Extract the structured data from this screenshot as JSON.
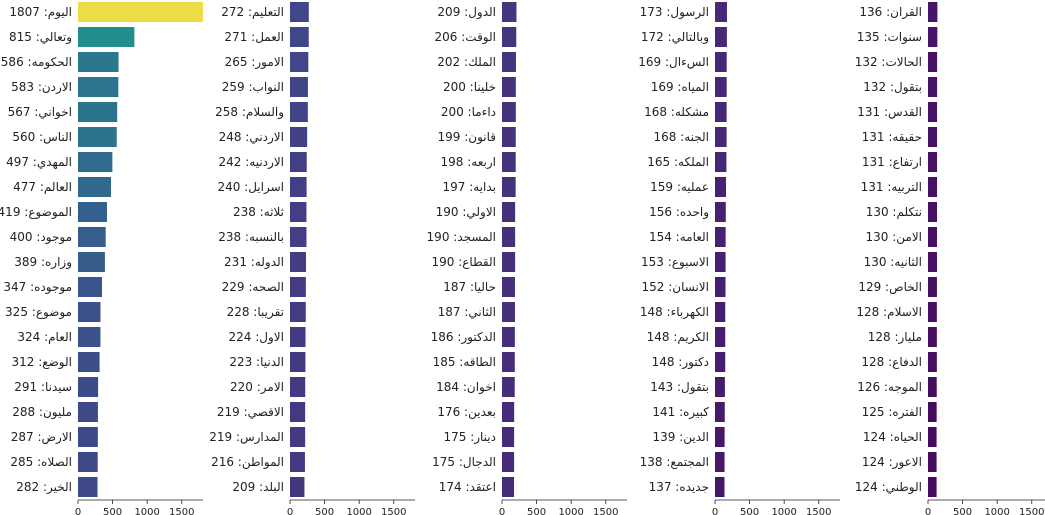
{
  "chart_data": {
    "type": "bar",
    "orientation": "horizontal",
    "xticks": [
      0,
      500,
      1000,
      1500
    ],
    "xlim": [
      0,
      1807
    ],
    "colormap": "viridis",
    "panels": [
      {
        "words": [
          "اليوم",
          "وتعالي",
          "الحكومه",
          "الاردن",
          "اخواني",
          "الناس",
          "المهدي",
          "العالم",
          "الموضوع",
          "موجود",
          "وزاره",
          "موجوده",
          "موضوع",
          "العام",
          "الوضع",
          "سيدنا",
          "مليون",
          "الارض",
          "الصلاه",
          "الخير"
        ],
        "values": [
          1807,
          815,
          586,
          583,
          567,
          560,
          497,
          477,
          419,
          400,
          389,
          347,
          325,
          324,
          312,
          291,
          288,
          287,
          285,
          282
        ]
      },
      {
        "words": [
          "التعليم",
          "العمل",
          "الامور",
          "النواب",
          "والسلام",
          "الاردني",
          "الاردنيه",
          "اسرايل",
          "ثلاثه",
          "بالنسبه",
          "الدوله",
          "الصحه",
          "تقريبا",
          "الاول",
          "الدنيا",
          "الامر",
          "الاقصي",
          "المدارس",
          "المواطن",
          "البلد"
        ],
        "values": [
          272,
          271,
          265,
          259,
          258,
          248,
          242,
          240,
          238,
          238,
          231,
          229,
          228,
          224,
          223,
          220,
          219,
          219,
          216,
          209
        ]
      },
      {
        "words": [
          "الدول",
          "الوقت",
          "الملك",
          "خلينا",
          "داءما",
          "قانون",
          "اربعه",
          "بدايه",
          "الاولي",
          "المسجد",
          "القطاع",
          "حاليا",
          "الثاني",
          "الدكتور",
          "الطاقه",
          "اخوان",
          "بعدين",
          "دينار",
          "الدجال",
          "اعتقد"
        ],
        "values": [
          209,
          206,
          202,
          200,
          200,
          199,
          198,
          197,
          190,
          190,
          190,
          187,
          187,
          186,
          185,
          184,
          176,
          175,
          175,
          174
        ]
      },
      {
        "words": [
          "الرسول",
          "وبالتالي",
          "السءال",
          "المياه",
          "مشكله",
          "الجنه",
          "الملكه",
          "عمليه",
          "واحده",
          "العامه",
          "الاسبوع",
          "الانسان",
          "الكهرباء",
          "الكريم",
          "دكتور",
          "بتقول",
          "كبيره",
          "الدين",
          "المجتمع",
          "جديده"
        ],
        "values": [
          173,
          172,
          169,
          169,
          168,
          168,
          165,
          159,
          156,
          154,
          153,
          152,
          148,
          148,
          148,
          143,
          141,
          139,
          138,
          137
        ]
      },
      {
        "words": [
          "القران",
          "سنوات",
          "الحالات",
          "بتقول",
          "القدس",
          "حقيقه",
          "ارتفاع",
          "التربيه",
          "نتكلم",
          "الامن",
          "الثانيه",
          "الخاص",
          "الاسلام",
          "مليار",
          "الدفاع",
          "الموجه",
          "الفتره",
          "الحياه",
          "الاعور",
          "الوطني"
        ],
        "values": [
          136,
          135,
          132,
          132,
          131,
          131,
          131,
          131,
          130,
          130,
          130,
          129,
          128,
          128,
          128,
          126,
          125,
          124,
          124,
          124
        ]
      }
    ]
  }
}
